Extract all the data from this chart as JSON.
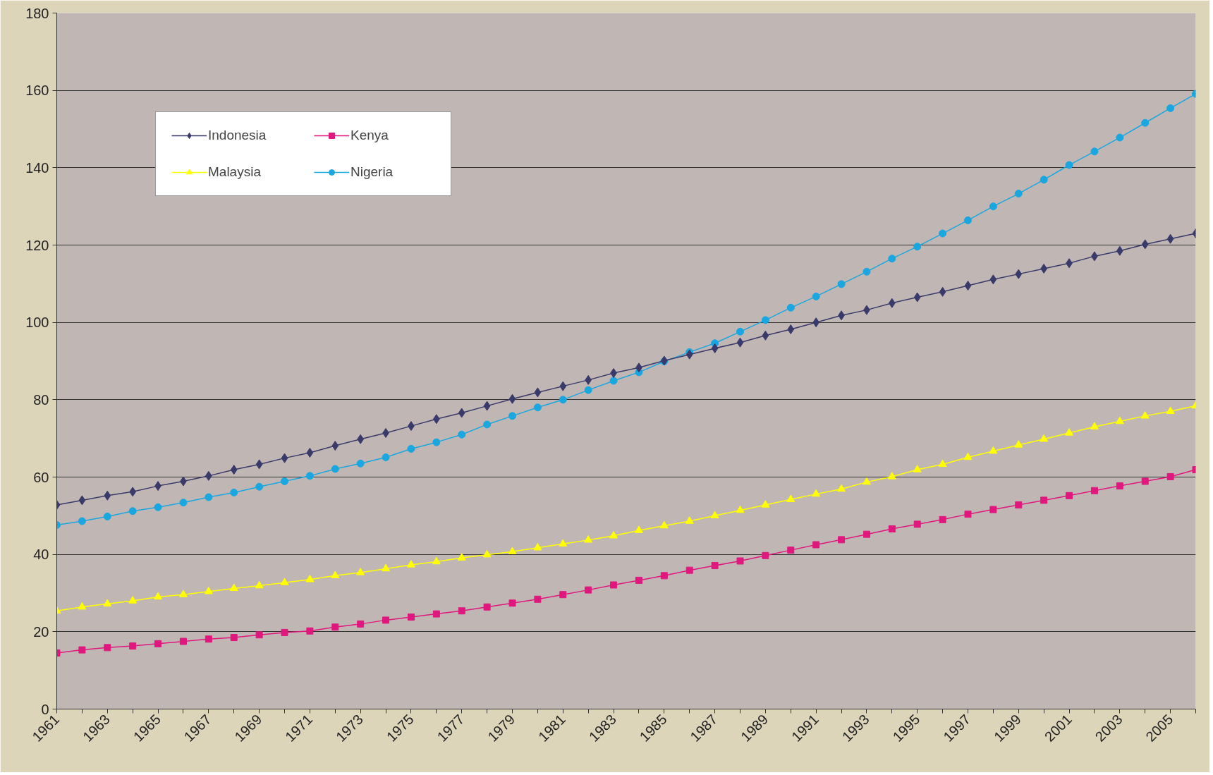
{
  "chart_data": {
    "type": "line",
    "categories": [
      "1961",
      null,
      "1963",
      null,
      "1965",
      null,
      "1967",
      null,
      "1969",
      null,
      "1971",
      null,
      "1973",
      null,
      "1975",
      null,
      "1977",
      null,
      "1979",
      null,
      "1981",
      null,
      "1983",
      null,
      "1985",
      null,
      "1987",
      null,
      "1989",
      null,
      "1991",
      null,
      "1993",
      null,
      "1995",
      null,
      "1997",
      null,
      "1999",
      null,
      "2001",
      null,
      "2003",
      null,
      "2005",
      null
    ],
    "ylim": [
      0,
      180
    ],
    "yticks": [
      0,
      20,
      40,
      60,
      80,
      100,
      120,
      140,
      160,
      180
    ],
    "grid": "y",
    "legend": "top left",
    "line_style": "solid",
    "series": [
      {
        "name": "Indonesia",
        "color": "#3a3a6a",
        "marker": "diamond",
        "values": [
          52.8,
          54.0,
          55.2,
          56.2,
          57.7,
          58.9,
          60.3,
          61.9,
          63.3,
          64.9,
          66.3,
          68.1,
          69.8,
          71.4,
          73.2,
          75,
          76.6,
          78.4,
          80.2,
          81.9,
          83.5,
          85.1,
          86.9,
          88.3,
          90.1,
          91.7,
          93.3,
          94.8,
          96.6,
          98.2,
          100,
          101.8,
          103.2,
          105,
          106.5,
          107.9,
          109.5,
          111.1,
          112.5,
          113.9,
          115.3,
          117.1,
          118.5,
          120.2,
          121.6,
          123
        ]
      },
      {
        "name": "Kenya",
        "color": "#e0187e",
        "marker": "square",
        "values": [
          14.5,
          15.3,
          15.9,
          16.3,
          16.9,
          17.5,
          18.1,
          18.5,
          19.2,
          19.8,
          20.2,
          21.2,
          22,
          23,
          23.8,
          24.6,
          25.4,
          26.4,
          27.4,
          28.4,
          29.6,
          30.8,
          32.1,
          33.3,
          34.5,
          35.9,
          37.1,
          38.3,
          39.7,
          41.1,
          42.5,
          43.8,
          45.2,
          46.6,
          47.8,
          49,
          50.4,
          51.6,
          52.8,
          54,
          55.2,
          56.5,
          57.7,
          58.9,
          60.1,
          61.9
        ]
      },
      {
        "name": "Malaysia",
        "color": "#ffff00",
        "marker": "triangle",
        "values": [
          25.4,
          26.4,
          27.2,
          28,
          29,
          29.6,
          30.4,
          31.2,
          31.9,
          32.7,
          33.5,
          34.5,
          35.3,
          36.3,
          37.3,
          38.1,
          39.1,
          39.9,
          40.7,
          41.7,
          42.7,
          43.7,
          44.8,
          46.2,
          47.4,
          48.6,
          50,
          51.4,
          52.8,
          54.2,
          55.6,
          56.9,
          58.7,
          60.1,
          61.9,
          63.3,
          65.1,
          66.7,
          68.3,
          69.8,
          71.4,
          73,
          74.4,
          75.8,
          77,
          78.4
        ]
      },
      {
        "name": "Nigeria",
        "color": "#1aa7e0",
        "marker": "circle",
        "values": [
          47.6,
          48.6,
          49.8,
          51.2,
          52.2,
          53.4,
          54.8,
          56,
          57.5,
          58.9,
          60.3,
          62.1,
          63.5,
          65.1,
          67.3,
          69,
          71,
          73.6,
          75.8,
          78,
          80,
          82.5,
          84.9,
          87.1,
          89.9,
          92.3,
          94.6,
          97.6,
          100.6,
          103.8,
          106.7,
          109.9,
          113.1,
          116.5,
          119.6,
          123,
          126.4,
          130,
          133.3,
          136.9,
          140.7,
          144.2,
          147.8,
          151.6,
          155.4,
          159.1
        ]
      }
    ]
  }
}
